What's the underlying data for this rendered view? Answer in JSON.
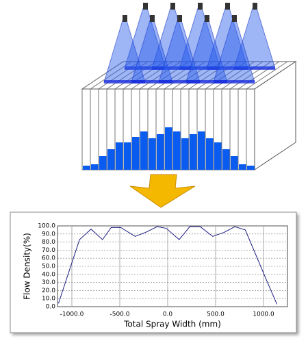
{
  "chart_data": {
    "type": "line",
    "x_label": "Total Spray Width (mm)",
    "y_label": "Flow Density(%)",
    "x": [
      -1140,
      -920,
      -800,
      -680,
      -590,
      -490,
      -340,
      -230,
      -110,
      -15,
      120,
      230,
      340,
      470,
      590,
      700,
      810,
      1020,
      1140
    ],
    "series": [
      {
        "color": "#1a1a80",
        "values": [
          4,
          83,
          96,
          83,
          98,
          98,
          87,
          92,
          99,
          97,
          83,
          99,
          99,
          87,
          92,
          99,
          95,
          36,
          3
        ]
      }
    ],
    "xlim": [
      -1150,
      1250
    ],
    "ylim": [
      0,
      100
    ],
    "xticks": [
      {
        "value": -1000,
        "label": "-1000.0"
      },
      {
        "value": -500,
        "label": "-500.0"
      },
      {
        "value": 0,
        "label": "0.0"
      },
      {
        "value": 500,
        "label": "500.0"
      },
      {
        "value": 1000,
        "label": "1000.0"
      }
    ],
    "yticks": [
      {
        "value": 0,
        "label": "0.0"
      },
      {
        "value": 10,
        "label": "10.0"
      },
      {
        "value": 20,
        "label": "20.0"
      },
      {
        "value": 30,
        "label": "30.0"
      },
      {
        "value": 40,
        "label": "40.0"
      },
      {
        "value": 50,
        "label": "50.0"
      },
      {
        "value": 60,
        "label": "60.0"
      },
      {
        "value": 70,
        "label": "70.0"
      },
      {
        "value": 80,
        "label": "80.0"
      },
      {
        "value": 90,
        "label": "90.0"
      },
      {
        "value": 100,
        "label": "100.0"
      }
    ],
    "grid": true
  }
}
